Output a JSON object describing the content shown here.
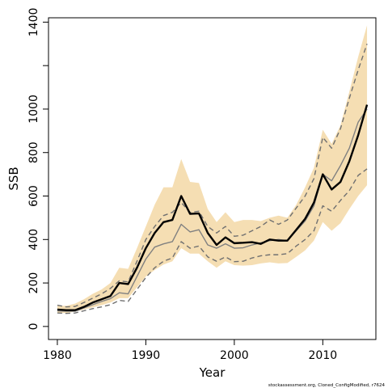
{
  "chart_data": {
    "type": "line",
    "xlabel": "Year",
    "ylabel": "SSB",
    "xlim": [
      1979,
      2016
    ],
    "ylim": [
      -60,
      1420
    ],
    "x_ticks": [
      1980,
      1990,
      2000,
      2010
    ],
    "x_tick_labels": [
      "1980",
      "1990",
      "2000",
      "2010"
    ],
    "y_ticks": [
      0,
      200,
      400,
      600,
      800,
      1000,
      1200,
      1400
    ],
    "y_tick_labels": [
      "0",
      "200",
      "400",
      "600",
      "800",
      "1000",
      "",
      "1400"
    ],
    "grid": false,
    "legend": "none",
    "footer": "stockassessment.org, Cloned_ConfigModified, r7624",
    "x": [
      1980,
      1981,
      1982,
      1983,
      1984,
      1985,
      1986,
      1987,
      1988,
      1989,
      1990,
      1991,
      1992,
      1993,
      1994,
      1995,
      1996,
      1997,
      1998,
      1999,
      2000,
      2001,
      2002,
      2003,
      2004,
      2005,
      2006,
      2007,
      2008,
      2009,
      2010,
      2011,
      2012,
      2013,
      2014,
      2015
    ],
    "band": {
      "color": "#f5deb3",
      "lower": [
        62,
        62,
        68,
        78,
        88,
        98,
        110,
        130,
        130,
        180,
        230,
        260,
        285,
        300,
        360,
        335,
        335,
        300,
        270,
        300,
        282,
        280,
        282,
        290,
        295,
        290,
        292,
        320,
        350,
        395,
        480,
        440,
        475,
        540,
        600,
        650
      ],
      "upper": [
        95,
        95,
        105,
        125,
        150,
        170,
        200,
        270,
        265,
        360,
        460,
        560,
        640,
        640,
        770,
        665,
        660,
        540,
        480,
        525,
        480,
        490,
        490,
        485,
        500,
        510,
        500,
        560,
        640,
        730,
        905,
        840,
        925,
        1080,
        1240,
        1385
      ]
    },
    "series": [
      {
        "role": "estimate",
        "color": "#000000",
        "style": "solid",
        "width": 2.4,
        "values": [
          78,
          75,
          75,
          90,
          110,
          125,
          140,
          200,
          195,
          270,
          360,
          430,
          480,
          490,
          600,
          518,
          520,
          430,
          375,
          410,
          383,
          385,
          388,
          380,
          400,
          395,
          395,
          445,
          495,
          570,
          700,
          630,
          665,
          760,
          880,
          1020
        ]
      },
      {
        "role": "comparison-run",
        "color": "#808080",
        "style": "solid",
        "width": 1.4,
        "values": [
          72,
          70,
          70,
          85,
          100,
          115,
          128,
          155,
          150,
          230,
          310,
          365,
          380,
          390,
          470,
          435,
          445,
          375,
          360,
          380,
          360,
          362,
          375,
          385,
          395,
          400,
          395,
          440,
          485,
          555,
          700,
          670,
          740,
          820,
          940,
          1000
        ]
      },
      {
        "role": "comparison-upper",
        "color": "#707070",
        "style": "dashed",
        "width": 1.4,
        "values": [
          98,
          90,
          92,
          110,
          130,
          150,
          175,
          210,
          205,
          300,
          400,
          460,
          510,
          525,
          570,
          525,
          530,
          460,
          430,
          460,
          415,
          420,
          440,
          460,
          490,
          470,
          490,
          545,
          600,
          680,
          870,
          820,
          910,
          1050,
          1180,
          1300
        ]
      },
      {
        "role": "comparison-lower",
        "color": "#707070",
        "style": "dashed",
        "width": 1.4,
        "values": [
          62,
          60,
          62,
          72,
          82,
          90,
          100,
          120,
          115,
          170,
          225,
          270,
          300,
          315,
          390,
          360,
          370,
          320,
          300,
          320,
          298,
          300,
          315,
          325,
          330,
          330,
          335,
          370,
          400,
          440,
          555,
          530,
          580,
          625,
          695,
          725
        ]
      }
    ]
  }
}
